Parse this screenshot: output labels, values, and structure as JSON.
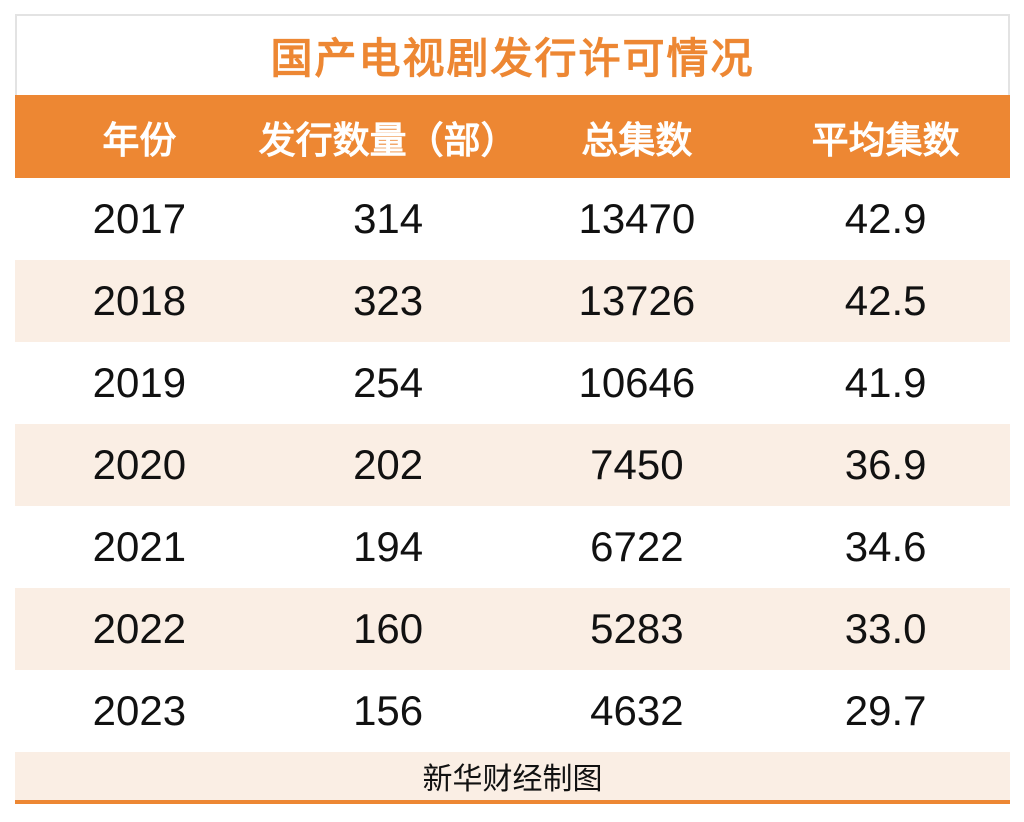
{
  "table": {
    "title": "国产电视剧发行许可情况",
    "columns": {
      "year": "年份",
      "count": "发行数量（部）",
      "total": "总集数",
      "avg": "平均集数"
    },
    "rows": [
      {
        "year": "2017",
        "count": "314",
        "total": "13470",
        "avg": "42.9"
      },
      {
        "year": "2018",
        "count": "323",
        "total": "13726",
        "avg": "42.5"
      },
      {
        "year": "2019",
        "count": "254",
        "total": "10646",
        "avg": "41.9"
      },
      {
        "year": "2020",
        "count": "202",
        "total": "7450",
        "avg": "36.9"
      },
      {
        "year": "2021",
        "count": "194",
        "total": "6722",
        "avg": "34.6"
      },
      {
        "year": "2022",
        "count": "160",
        "total": "5283",
        "avg": "33.0"
      },
      {
        "year": "2023",
        "count": "156",
        "total": "4632",
        "avg": "29.7"
      }
    ],
    "credit": "新华财经制图"
  },
  "colors": {
    "accent_orange": "#ED8733",
    "alt_row_cream": "#FAEEE4",
    "title_border_gray": "#E3E3E3",
    "text_black": "#111111",
    "header_text_white": "#FFFFFF"
  },
  "chart_data": {
    "type": "table",
    "title": "国产电视剧发行许可情况",
    "columns": [
      "年份",
      "发行数量（部）",
      "总集数",
      "平均集数"
    ],
    "x": [
      2017,
      2018,
      2019,
      2020,
      2021,
      2022,
      2023
    ],
    "series": [
      {
        "name": "发行数量（部）",
        "values": [
          314,
          323,
          254,
          202,
          194,
          160,
          156
        ]
      },
      {
        "name": "总集数",
        "values": [
          13470,
          13726,
          10646,
          7450,
          6722,
          5283,
          4632
        ]
      },
      {
        "name": "平均集数",
        "values": [
          42.9,
          42.5,
          41.9,
          36.9,
          34.6,
          33.0,
          29.7
        ]
      }
    ],
    "annotations": [
      "新华财经制图"
    ],
    "layout": "header row orange with white text, body rows alternate white/cream, credit row at bottom, orange rule under table"
  }
}
